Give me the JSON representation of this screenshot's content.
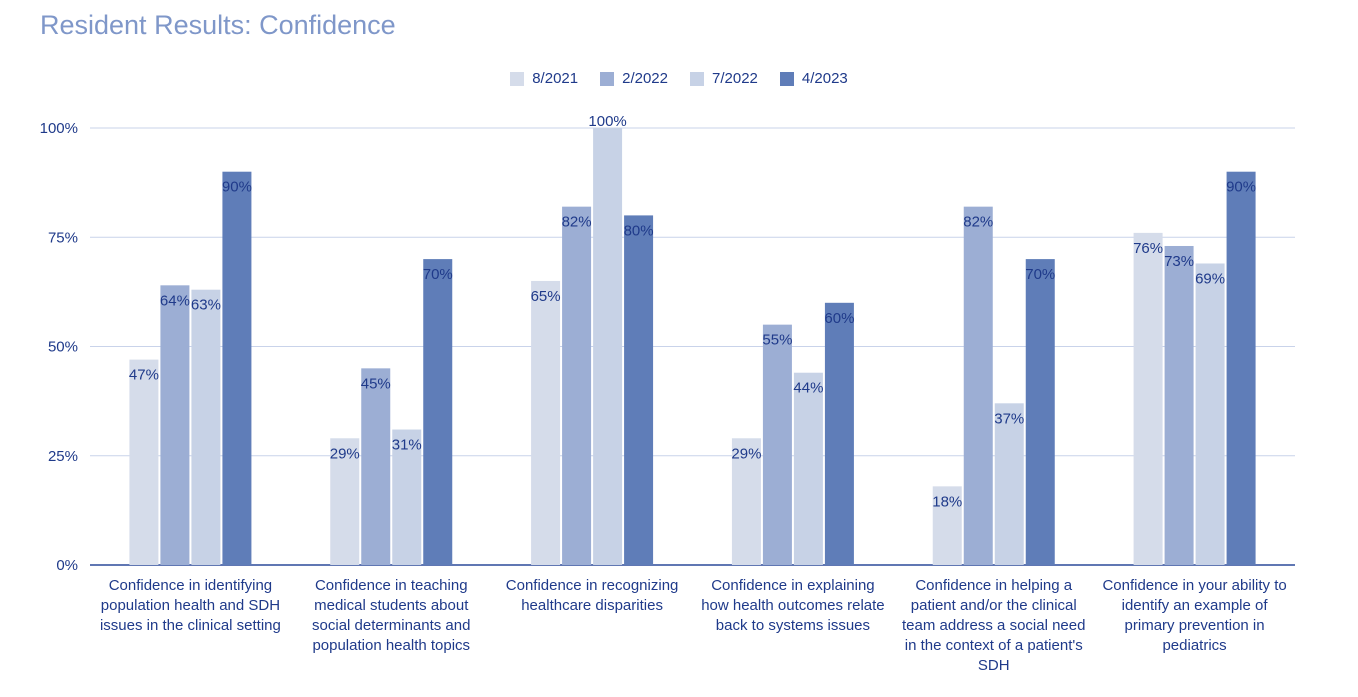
{
  "title": "Resident Results: Confidence",
  "chart_data": {
    "type": "bar",
    "title": "Resident Results: Confidence",
    "xlabel": "",
    "ylabel": "",
    "ylim": [
      0,
      100
    ],
    "yticks": [
      "0%",
      "25%",
      "50%",
      "75%",
      "100%"
    ],
    "grid": true,
    "legend_position": "top",
    "categories": [
      [
        "Confidence in identifying",
        "population health and SDH",
        "issues in the clinical setting"
      ],
      [
        "Confidence in teaching",
        "medical students about",
        "social determinants and",
        "population health topics"
      ],
      [
        "Confidence in recognizing",
        "healthcare disparities"
      ],
      [
        "Confidence in explaining",
        "how health outcomes relate",
        "back to systems issues"
      ],
      [
        "Confidence in helping a",
        "patient and/or the clinical",
        "team address a social need",
        "in the context of a patient's",
        "SDH"
      ],
      [
        "Confidence in your ability to",
        "identify an example of",
        "primary prevention in",
        "pediatrics"
      ]
    ],
    "series": [
      {
        "name": "8/2021",
        "color": "#d5dcea",
        "values": [
          47,
          29,
          65,
          29,
          18,
          76
        ],
        "labels": [
          "47%",
          "29%",
          "65%",
          "29%",
          "18%",
          "76%"
        ]
      },
      {
        "name": "2/2022",
        "color": "#9caed4",
        "values": [
          64,
          45,
          82,
          55,
          82,
          73
        ],
        "labels": [
          "64%",
          "45%",
          "82%",
          "55%",
          "82%",
          "73%"
        ]
      },
      {
        "name": "7/2022",
        "color": "#c7d2e6",
        "values": [
          63,
          31,
          100,
          44,
          37,
          69
        ],
        "labels": [
          "63%",
          "31%",
          "100%",
          "44%",
          "37%",
          "69%"
        ]
      },
      {
        "name": "4/2023",
        "color": "#5f7db8",
        "values": [
          90,
          70,
          80,
          60,
          70,
          90
        ],
        "labels": [
          "90%",
          "70%",
          "80%",
          "60%",
          "70%",
          "90%"
        ]
      }
    ]
  }
}
